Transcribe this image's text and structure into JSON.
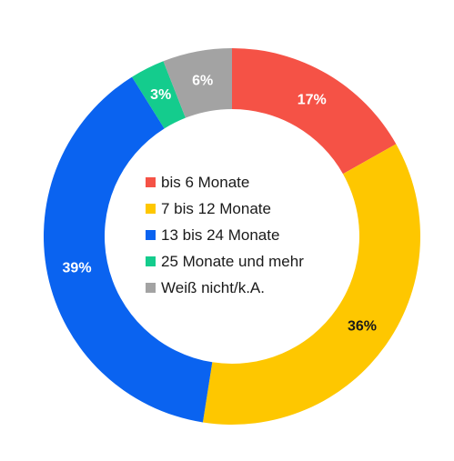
{
  "chart_data": {
    "type": "pie",
    "style": "donut",
    "title": "",
    "start": "top",
    "direction": "clockwise",
    "slices": [
      {
        "label": "bis 6 Monate",
        "value": 17,
        "value_label": "17%",
        "color": "#f55246",
        "label_color": "#ffffff"
      },
      {
        "label": "7 bis 12 Monate",
        "value": 36,
        "value_label": "36%",
        "color": "#fec700",
        "label_color": "#1a1a1a"
      },
      {
        "label": "13 bis 24 Monate",
        "value": 39,
        "value_label": "39%",
        "color": "#0a63f0",
        "label_color": "#ffffff"
      },
      {
        "label": "25 Monate und mehr",
        "value": 3,
        "value_label": "3%",
        "color": "#14cc8d",
        "label_color": "#ffffff"
      },
      {
        "label": "Weiß nicht/k.A.",
        "value": 6,
        "value_label": "6%",
        "color": "#a3a3a3",
        "label_color": "#ffffff"
      }
    ],
    "legend": "center"
  }
}
